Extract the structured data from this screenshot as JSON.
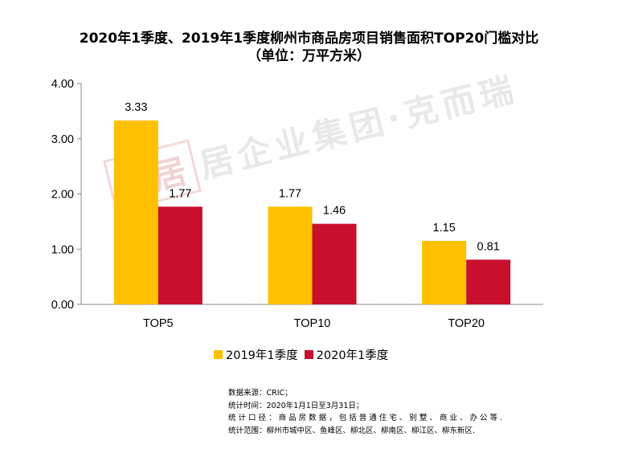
{
  "title_line1": "2020年1季度、2019年1季度柳州市商品房项目销售面积TOP20门槛对比",
  "title_line2": "（单位：万平方米）",
  "watermark_text": "居企业集团·克而瑞",
  "watermark_seal": "易居",
  "chart_data": {
    "type": "bar",
    "categories": [
      "TOP5",
      "TOP10",
      "TOP20"
    ],
    "series": [
      {
        "name": "2019年1季度",
        "values": [
          3.33,
          1.77,
          1.15
        ],
        "labels": [
          "3.33",
          "1.77",
          "1.15"
        ],
        "color": "#FFC000"
      },
      {
        "name": "2020年1季度",
        "values": [
          1.77,
          1.46,
          0.81
        ],
        "labels": [
          "1.77",
          "1.46",
          "0.81"
        ],
        "color": "#C8102E"
      }
    ],
    "ylim": [
      0,
      4
    ],
    "yticks": [
      "0.00",
      "1.00",
      "2.00",
      "3.00",
      "4.00"
    ],
    "grid": false,
    "legend_position": "bottom"
  },
  "notes": [
    "数据来源：CRIC；",
    "统计时间：2020年1月1日至3月31日；",
    "统 计 口 径 ： 商 品 房 数 据 ， 包 括 普 通 住 宅 、 别 墅 、 商 业 、 办 公 等 .",
    "统计范围：柳州市城中区、鱼峰区、柳北区、柳南区、柳江区、柳东新区."
  ]
}
